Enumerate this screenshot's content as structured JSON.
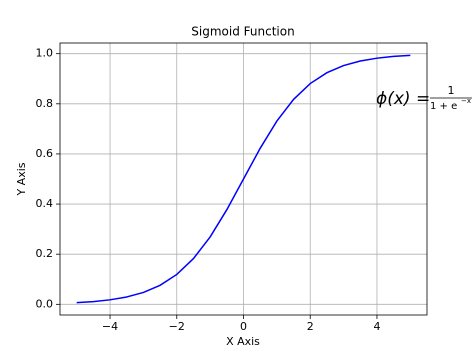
{
  "chart_data": {
    "type": "line",
    "title": "Sigmoid Function",
    "x_label": "X Axis",
    "y_label": "Y Axis",
    "x": [
      -5,
      -4.5,
      -4,
      -3.5,
      -3,
      -2.5,
      -2,
      -1.5,
      -1,
      -0.5,
      0,
      0.5,
      1,
      1.5,
      2,
      2.5,
      3,
      3.5,
      4,
      4.5,
      5
    ],
    "series": [
      {
        "color": "#0000ff",
        "values": [
          0.0067,
          0.011,
          0.018,
          0.0293,
          0.0474,
          0.0759,
          0.1192,
          0.1824,
          0.2689,
          0.3775,
          0.5,
          0.6225,
          0.7311,
          0.8176,
          0.8808,
          0.9241,
          0.9526,
          0.9707,
          0.982,
          0.989,
          0.9933
        ]
      }
    ],
    "xlim": [
      -5.5,
      5.5
    ],
    "ylim": [
      -0.0426,
      1.0426
    ],
    "xticks": [
      {
        "value": -4,
        "label": "−4"
      },
      {
        "value": -2,
        "label": "−2"
      },
      0,
      2,
      4
    ],
    "yticks": [
      {
        "value": 0,
        "label": "0.0"
      },
      0.2,
      0.4,
      0.6,
      0.8,
      {
        "value": 1,
        "label": "1.0"
      }
    ],
    "grid": true,
    "annotation": {
      "lhs": "ϕ(x) =",
      "numerator": "1",
      "denominator": "1 + e",
      "exponent": "−x"
    }
  }
}
